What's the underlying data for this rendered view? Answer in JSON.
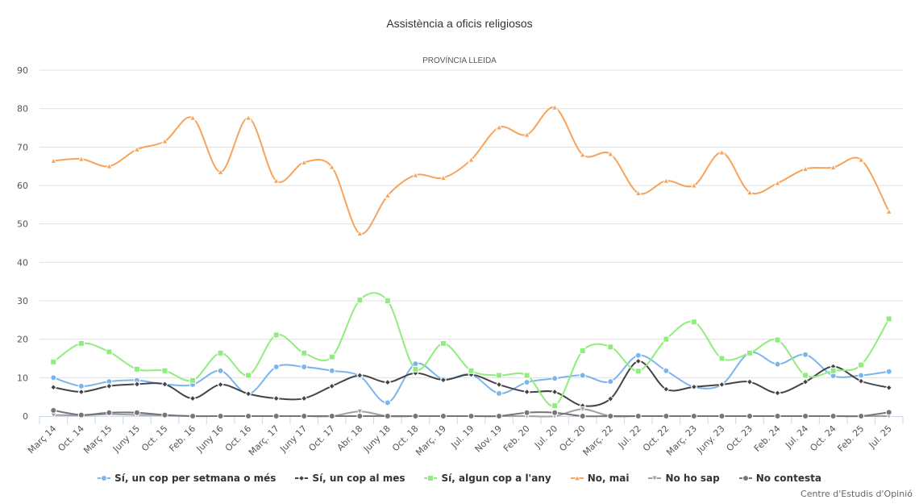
{
  "chart_data": {
    "type": "line",
    "title": "Assistència a oficis religiosos",
    "subtitle": "PROVÍNCIA LLEIDA",
    "xlabel": "",
    "ylabel": "",
    "ylim": [
      0,
      90
    ],
    "yticks": [
      "0",
      "10",
      "20",
      "30",
      "40",
      "50",
      "60",
      "70",
      "80",
      "90"
    ],
    "grid": true,
    "legend_position": "bottom",
    "categories": [
      "Març 14",
      "Oct. 14",
      "Març 15",
      "Juny 15",
      "Oct. 15",
      "Feb. 16",
      "Juny 16",
      "Oct. 16",
      "Març. 17",
      "Juny 17",
      "Oct. 17",
      "Abr. 18",
      "Juny 18",
      "Oct. 18",
      "Març. 19",
      "Jul. 19",
      "Nov. 19",
      "Feb. 20",
      "Jul. 20",
      "Oct. 20",
      "Març. 22",
      "Jul. 22",
      "Oct. 22",
      "Març. 23",
      "Juny. 23",
      "Oct. 23",
      "Feb. 24",
      "Jul. 24",
      "Oct. 24",
      "Feb. 25",
      "Jul. 25"
    ],
    "series": [
      {
        "name": "Sí, un cop per setmana o més",
        "color": "#7cb5ec",
        "marker": "circle",
        "values": [
          10.0,
          7.8,
          9.0,
          9.3,
          8.3,
          8.2,
          11.8,
          5.8,
          12.8,
          12.8,
          11.8,
          10.4,
          3.5,
          13.6,
          9.6,
          10.8,
          5.9,
          8.8,
          9.8,
          10.6,
          9.0,
          15.8,
          11.8,
          7.6,
          8.2,
          16.5,
          13.5,
          16.0,
          10.5,
          10.6,
          11.6
        ]
      },
      {
        "name": "Sí, un cop al mes",
        "color": "#434348",
        "marker": "diamond",
        "values": [
          7.5,
          6.3,
          7.8,
          8.3,
          8.3,
          4.6,
          8.2,
          5.8,
          4.6,
          4.6,
          7.8,
          10.6,
          8.8,
          11.2,
          9.4,
          10.8,
          8.2,
          6.3,
          6.3,
          2.7,
          4.5,
          14.3,
          7.0,
          7.6,
          8.2,
          8.9,
          6.0,
          8.9,
          12.9,
          9.1,
          7.4
        ]
      },
      {
        "name": "Sí, algun cop a l'any",
        "color": "#90ed7d",
        "marker": "square",
        "values": [
          14.1,
          18.9,
          16.7,
          12.2,
          11.8,
          9.3,
          16.4,
          10.6,
          21.1,
          16.4,
          15.4,
          30.2,
          30.0,
          12.2,
          18.9,
          11.8,
          10.6,
          10.6,
          2.7,
          17.0,
          18.0,
          11.7,
          20.0,
          24.5,
          15.0,
          16.4,
          19.8,
          10.6,
          11.8,
          13.3,
          25.3
        ]
      },
      {
        "name": "No, mai",
        "color": "#f7a35c",
        "marker": "triangle",
        "values": [
          66.4,
          66.9,
          65.0,
          69.4,
          71.5,
          77.6,
          63.5,
          77.6,
          61.2,
          66.0,
          64.8,
          47.5,
          57.4,
          62.7,
          62.0,
          66.7,
          75.1,
          73.2,
          80.3,
          68.0,
          68.2,
          58.0,
          61.2,
          60.0,
          68.6,
          58.2,
          60.6,
          64.3,
          64.7,
          66.7,
          53.2
        ]
      },
      {
        "name": "No ho sap",
        "color": "#a0a0a0",
        "marker": "triangle-down",
        "values": [
          0.3,
          0.2,
          0.5,
          0.3,
          0.2,
          0.0,
          0.0,
          0.0,
          0.0,
          0.0,
          0.0,
          1.2,
          0.0,
          0.0,
          0.0,
          0.0,
          0.0,
          0.0,
          0.0,
          1.8,
          0.0,
          0.0,
          0.0,
          0.0,
          0.0,
          0.0,
          0.0,
          0.0,
          0.0,
          0.0,
          0.0
        ]
      },
      {
        "name": "No contesta",
        "color": "#757575",
        "marker": "circle",
        "values": [
          1.5,
          0.3,
          0.9,
          0.9,
          0.3,
          0.0,
          0.0,
          0.0,
          0.0,
          0.0,
          0.0,
          0.0,
          0.0,
          0.0,
          0.0,
          0.0,
          0.0,
          0.9,
          0.9,
          0.0,
          0.0,
          0.0,
          0.0,
          0.0,
          0.0,
          0.0,
          0.0,
          0.0,
          0.0,
          0.0,
          1.0
        ]
      }
    ]
  },
  "credit": "Centre d'Estudis d'Opinió"
}
